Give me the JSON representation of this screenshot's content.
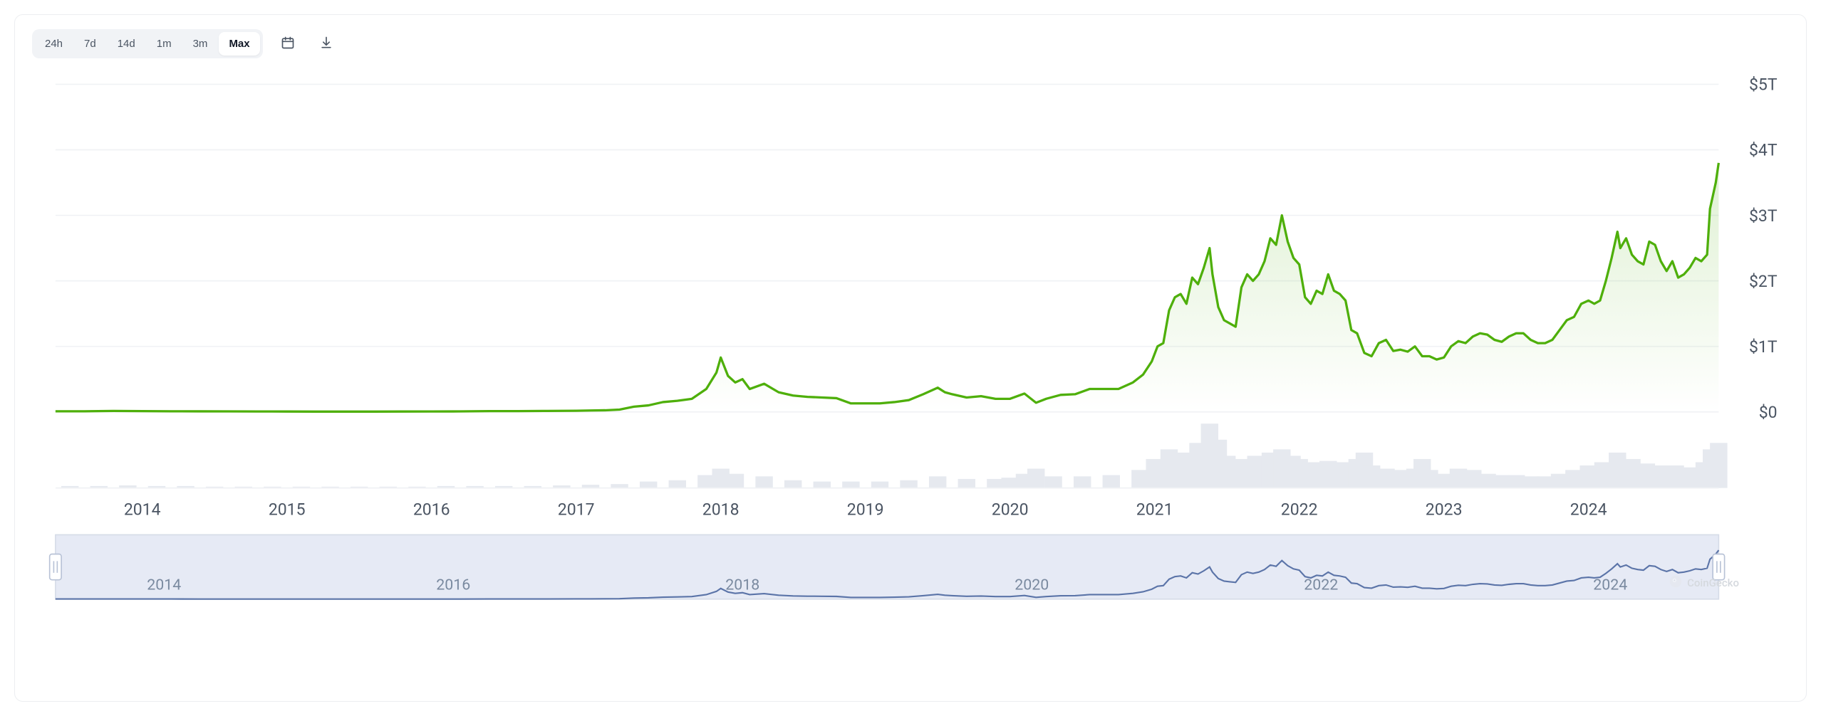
{
  "toolbar": {
    "ranges": [
      "24h",
      "7d",
      "14d",
      "1m",
      "3m",
      "Max"
    ],
    "active_range": "Max"
  },
  "watermark": {
    "text": "CoinGecko"
  },
  "main_chart": {
    "type": "area",
    "line_color": "#4eaf0a",
    "line_width": 2,
    "fill_top_color": "#4eaf0a",
    "fill_top_opacity": 0.18,
    "fill_bottom_opacity": 0.0,
    "grid_color": "#f0f2f5",
    "background_color": "#ffffff",
    "y_axis": {
      "min": 0,
      "max": 5,
      "ticks": [
        0,
        1,
        2,
        3,
        4,
        5
      ],
      "tick_labels": [
        "$0",
        "$1T",
        "$2T",
        "$3T",
        "$4T",
        "$5T"
      ],
      "label_color": "#4b5563",
      "label_fontsize": 14
    },
    "x_axis": {
      "tick_years": [
        2014,
        2015,
        2016,
        2017,
        2018,
        2019,
        2020,
        2021,
        2022,
        2023,
        2024
      ],
      "label_color": "#4b5563",
      "label_fontsize": 14
    },
    "x_domain": [
      2013.4,
      2024.9
    ],
    "series": [
      {
        "x": 2013.4,
        "y": 0.01
      },
      {
        "x": 2013.6,
        "y": 0.01
      },
      {
        "x": 2013.8,
        "y": 0.015
      },
      {
        "x": 2014.0,
        "y": 0.012
      },
      {
        "x": 2014.2,
        "y": 0.01
      },
      {
        "x": 2014.4,
        "y": 0.009
      },
      {
        "x": 2014.6,
        "y": 0.008
      },
      {
        "x": 2014.8,
        "y": 0.007
      },
      {
        "x": 2015.0,
        "y": 0.006
      },
      {
        "x": 2015.2,
        "y": 0.005
      },
      {
        "x": 2015.4,
        "y": 0.005
      },
      {
        "x": 2015.6,
        "y": 0.005
      },
      {
        "x": 2015.8,
        "y": 0.006
      },
      {
        "x": 2016.0,
        "y": 0.007
      },
      {
        "x": 2016.2,
        "y": 0.008
      },
      {
        "x": 2016.4,
        "y": 0.012
      },
      {
        "x": 2016.6,
        "y": 0.012
      },
      {
        "x": 2016.8,
        "y": 0.015
      },
      {
        "x": 2017.0,
        "y": 0.018
      },
      {
        "x": 2017.1,
        "y": 0.022
      },
      {
        "x": 2017.2,
        "y": 0.025
      },
      {
        "x": 2017.3,
        "y": 0.035
      },
      {
        "x": 2017.4,
        "y": 0.08
      },
      {
        "x": 2017.5,
        "y": 0.1
      },
      {
        "x": 2017.6,
        "y": 0.15
      },
      {
        "x": 2017.7,
        "y": 0.17
      },
      {
        "x": 2017.8,
        "y": 0.2
      },
      {
        "x": 2017.9,
        "y": 0.35
      },
      {
        "x": 2017.97,
        "y": 0.6
      },
      {
        "x": 2018.0,
        "y": 0.83
      },
      {
        "x": 2018.05,
        "y": 0.55
      },
      {
        "x": 2018.1,
        "y": 0.45
      },
      {
        "x": 2018.15,
        "y": 0.5
      },
      {
        "x": 2018.2,
        "y": 0.35
      },
      {
        "x": 2018.3,
        "y": 0.43
      },
      {
        "x": 2018.4,
        "y": 0.3
      },
      {
        "x": 2018.5,
        "y": 0.25
      },
      {
        "x": 2018.6,
        "y": 0.23
      },
      {
        "x": 2018.7,
        "y": 0.22
      },
      {
        "x": 2018.8,
        "y": 0.21
      },
      {
        "x": 2018.9,
        "y": 0.13
      },
      {
        "x": 2019.0,
        "y": 0.13
      },
      {
        "x": 2019.1,
        "y": 0.13
      },
      {
        "x": 2019.2,
        "y": 0.15
      },
      {
        "x": 2019.3,
        "y": 0.18
      },
      {
        "x": 2019.4,
        "y": 0.27
      },
      {
        "x": 2019.5,
        "y": 0.37
      },
      {
        "x": 2019.55,
        "y": 0.3
      },
      {
        "x": 2019.6,
        "y": 0.27
      },
      {
        "x": 2019.7,
        "y": 0.22
      },
      {
        "x": 2019.8,
        "y": 0.24
      },
      {
        "x": 2019.9,
        "y": 0.2
      },
      {
        "x": 2020.0,
        "y": 0.2
      },
      {
        "x": 2020.1,
        "y": 0.28
      },
      {
        "x": 2020.18,
        "y": 0.14
      },
      {
        "x": 2020.25,
        "y": 0.2
      },
      {
        "x": 2020.35,
        "y": 0.26
      },
      {
        "x": 2020.45,
        "y": 0.27
      },
      {
        "x": 2020.55,
        "y": 0.35
      },
      {
        "x": 2020.65,
        "y": 0.35
      },
      {
        "x": 2020.75,
        "y": 0.35
      },
      {
        "x": 2020.85,
        "y": 0.45
      },
      {
        "x": 2020.92,
        "y": 0.57
      },
      {
        "x": 2020.98,
        "y": 0.77
      },
      {
        "x": 2021.02,
        "y": 1.0
      },
      {
        "x": 2021.06,
        "y": 1.05
      },
      {
        "x": 2021.1,
        "y": 1.55
      },
      {
        "x": 2021.14,
        "y": 1.75
      },
      {
        "x": 2021.18,
        "y": 1.8
      },
      {
        "x": 2021.22,
        "y": 1.65
      },
      {
        "x": 2021.26,
        "y": 2.05
      },
      {
        "x": 2021.3,
        "y": 1.95
      },
      {
        "x": 2021.34,
        "y": 2.2
      },
      {
        "x": 2021.38,
        "y": 2.5
      },
      {
        "x": 2021.4,
        "y": 2.1
      },
      {
        "x": 2021.44,
        "y": 1.6
      },
      {
        "x": 2021.48,
        "y": 1.4
      },
      {
        "x": 2021.52,
        "y": 1.35
      },
      {
        "x": 2021.56,
        "y": 1.3
      },
      {
        "x": 2021.6,
        "y": 1.9
      },
      {
        "x": 2021.64,
        "y": 2.1
      },
      {
        "x": 2021.68,
        "y": 2.0
      },
      {
        "x": 2021.72,
        "y": 2.1
      },
      {
        "x": 2021.76,
        "y": 2.3
      },
      {
        "x": 2021.8,
        "y": 2.65
      },
      {
        "x": 2021.84,
        "y": 2.55
      },
      {
        "x": 2021.88,
        "y": 3.0
      },
      {
        "x": 2021.92,
        "y": 2.6
      },
      {
        "x": 2021.96,
        "y": 2.35
      },
      {
        "x": 2022.0,
        "y": 2.25
      },
      {
        "x": 2022.04,
        "y": 1.75
      },
      {
        "x": 2022.08,
        "y": 1.65
      },
      {
        "x": 2022.12,
        "y": 1.85
      },
      {
        "x": 2022.16,
        "y": 1.8
      },
      {
        "x": 2022.2,
        "y": 2.1
      },
      {
        "x": 2022.24,
        "y": 1.85
      },
      {
        "x": 2022.28,
        "y": 1.8
      },
      {
        "x": 2022.32,
        "y": 1.7
      },
      {
        "x": 2022.36,
        "y": 1.25
      },
      {
        "x": 2022.4,
        "y": 1.2
      },
      {
        "x": 2022.45,
        "y": 0.9
      },
      {
        "x": 2022.5,
        "y": 0.85
      },
      {
        "x": 2022.55,
        "y": 1.05
      },
      {
        "x": 2022.6,
        "y": 1.1
      },
      {
        "x": 2022.65,
        "y": 0.93
      },
      {
        "x": 2022.7,
        "y": 0.95
      },
      {
        "x": 2022.75,
        "y": 0.92
      },
      {
        "x": 2022.8,
        "y": 1.0
      },
      {
        "x": 2022.85,
        "y": 0.85
      },
      {
        "x": 2022.9,
        "y": 0.85
      },
      {
        "x": 2022.95,
        "y": 0.8
      },
      {
        "x": 2023.0,
        "y": 0.83
      },
      {
        "x": 2023.05,
        "y": 1.0
      },
      {
        "x": 2023.1,
        "y": 1.08
      },
      {
        "x": 2023.15,
        "y": 1.05
      },
      {
        "x": 2023.2,
        "y": 1.15
      },
      {
        "x": 2023.25,
        "y": 1.2
      },
      {
        "x": 2023.3,
        "y": 1.18
      },
      {
        "x": 2023.35,
        "y": 1.1
      },
      {
        "x": 2023.4,
        "y": 1.07
      },
      {
        "x": 2023.45,
        "y": 1.15
      },
      {
        "x": 2023.5,
        "y": 1.2
      },
      {
        "x": 2023.55,
        "y": 1.2
      },
      {
        "x": 2023.6,
        "y": 1.1
      },
      {
        "x": 2023.65,
        "y": 1.05
      },
      {
        "x": 2023.7,
        "y": 1.05
      },
      {
        "x": 2023.75,
        "y": 1.1
      },
      {
        "x": 2023.8,
        "y": 1.25
      },
      {
        "x": 2023.85,
        "y": 1.4
      },
      {
        "x": 2023.9,
        "y": 1.45
      },
      {
        "x": 2023.95,
        "y": 1.65
      },
      {
        "x": 2024.0,
        "y": 1.7
      },
      {
        "x": 2024.04,
        "y": 1.65
      },
      {
        "x": 2024.08,
        "y": 1.7
      },
      {
        "x": 2024.12,
        "y": 2.0
      },
      {
        "x": 2024.16,
        "y": 2.35
      },
      {
        "x": 2024.2,
        "y": 2.75
      },
      {
        "x": 2024.22,
        "y": 2.5
      },
      {
        "x": 2024.26,
        "y": 2.65
      },
      {
        "x": 2024.3,
        "y": 2.4
      },
      {
        "x": 2024.34,
        "y": 2.3
      },
      {
        "x": 2024.38,
        "y": 2.25
      },
      {
        "x": 2024.42,
        "y": 2.6
      },
      {
        "x": 2024.46,
        "y": 2.55
      },
      {
        "x": 2024.5,
        "y": 2.3
      },
      {
        "x": 2024.54,
        "y": 2.15
      },
      {
        "x": 2024.58,
        "y": 2.3
      },
      {
        "x": 2024.62,
        "y": 2.05
      },
      {
        "x": 2024.66,
        "y": 2.1
      },
      {
        "x": 2024.7,
        "y": 2.2
      },
      {
        "x": 2024.74,
        "y": 2.35
      },
      {
        "x": 2024.78,
        "y": 2.3
      },
      {
        "x": 2024.82,
        "y": 2.4
      },
      {
        "x": 2024.84,
        "y": 3.1
      },
      {
        "x": 2024.86,
        "y": 3.3
      },
      {
        "x": 2024.88,
        "y": 3.5
      },
      {
        "x": 2024.9,
        "y": 3.8
      }
    ]
  },
  "volume_chart": {
    "bar_color": "#e6e9ef",
    "bars": [
      {
        "x": 2013.5,
        "h": 0.03
      },
      {
        "x": 2013.7,
        "h": 0.03
      },
      {
        "x": 2013.9,
        "h": 0.04
      },
      {
        "x": 2014.1,
        "h": 0.03
      },
      {
        "x": 2014.3,
        "h": 0.03
      },
      {
        "x": 2014.5,
        "h": 0.02
      },
      {
        "x": 2014.7,
        "h": 0.02
      },
      {
        "x": 2014.9,
        "h": 0.02
      },
      {
        "x": 2015.1,
        "h": 0.02
      },
      {
        "x": 2015.3,
        "h": 0.02
      },
      {
        "x": 2015.5,
        "h": 0.02
      },
      {
        "x": 2015.7,
        "h": 0.02
      },
      {
        "x": 2015.9,
        "h": 0.02
      },
      {
        "x": 2016.1,
        "h": 0.03
      },
      {
        "x": 2016.3,
        "h": 0.03
      },
      {
        "x": 2016.5,
        "h": 0.03
      },
      {
        "x": 2016.7,
        "h": 0.03
      },
      {
        "x": 2016.9,
        "h": 0.04
      },
      {
        "x": 2017.1,
        "h": 0.05
      },
      {
        "x": 2017.3,
        "h": 0.06
      },
      {
        "x": 2017.5,
        "h": 0.1
      },
      {
        "x": 2017.7,
        "h": 0.12
      },
      {
        "x": 2017.9,
        "h": 0.2
      },
      {
        "x": 2018.0,
        "h": 0.3
      },
      {
        "x": 2018.1,
        "h": 0.22
      },
      {
        "x": 2018.3,
        "h": 0.18
      },
      {
        "x": 2018.5,
        "h": 0.12
      },
      {
        "x": 2018.7,
        "h": 0.1
      },
      {
        "x": 2018.9,
        "h": 0.1
      },
      {
        "x": 2019.1,
        "h": 0.1
      },
      {
        "x": 2019.3,
        "h": 0.12
      },
      {
        "x": 2019.5,
        "h": 0.18
      },
      {
        "x": 2019.7,
        "h": 0.14
      },
      {
        "x": 2019.9,
        "h": 0.14
      },
      {
        "x": 2020.0,
        "h": 0.16
      },
      {
        "x": 2020.1,
        "h": 0.22
      },
      {
        "x": 2020.18,
        "h": 0.3
      },
      {
        "x": 2020.3,
        "h": 0.18
      },
      {
        "x": 2020.5,
        "h": 0.18
      },
      {
        "x": 2020.7,
        "h": 0.2
      },
      {
        "x": 2020.9,
        "h": 0.28
      },
      {
        "x": 2021.0,
        "h": 0.45
      },
      {
        "x": 2021.1,
        "h": 0.6
      },
      {
        "x": 2021.2,
        "h": 0.55
      },
      {
        "x": 2021.3,
        "h": 0.7
      },
      {
        "x": 2021.38,
        "h": 1.0
      },
      {
        "x": 2021.44,
        "h": 0.75
      },
      {
        "x": 2021.5,
        "h": 0.5
      },
      {
        "x": 2021.6,
        "h": 0.45
      },
      {
        "x": 2021.7,
        "h": 0.5
      },
      {
        "x": 2021.8,
        "h": 0.55
      },
      {
        "x": 2021.88,
        "h": 0.6
      },
      {
        "x": 2021.95,
        "h": 0.5
      },
      {
        "x": 2022.0,
        "h": 0.45
      },
      {
        "x": 2022.1,
        "h": 0.4
      },
      {
        "x": 2022.2,
        "h": 0.42
      },
      {
        "x": 2022.3,
        "h": 0.4
      },
      {
        "x": 2022.4,
        "h": 0.45
      },
      {
        "x": 2022.45,
        "h": 0.55
      },
      {
        "x": 2022.5,
        "h": 0.35
      },
      {
        "x": 2022.6,
        "h": 0.3
      },
      {
        "x": 2022.7,
        "h": 0.28
      },
      {
        "x": 2022.8,
        "h": 0.3
      },
      {
        "x": 2022.85,
        "h": 0.45
      },
      {
        "x": 2022.9,
        "h": 0.28
      },
      {
        "x": 2023.0,
        "h": 0.22
      },
      {
        "x": 2023.1,
        "h": 0.3
      },
      {
        "x": 2023.2,
        "h": 0.28
      },
      {
        "x": 2023.3,
        "h": 0.22
      },
      {
        "x": 2023.4,
        "h": 0.2
      },
      {
        "x": 2023.5,
        "h": 0.2
      },
      {
        "x": 2023.6,
        "h": 0.18
      },
      {
        "x": 2023.7,
        "h": 0.18
      },
      {
        "x": 2023.8,
        "h": 0.22
      },
      {
        "x": 2023.9,
        "h": 0.28
      },
      {
        "x": 2024.0,
        "h": 0.35
      },
      {
        "x": 2024.1,
        "h": 0.4
      },
      {
        "x": 2024.2,
        "h": 0.55
      },
      {
        "x": 2024.3,
        "h": 0.45
      },
      {
        "x": 2024.4,
        "h": 0.38
      },
      {
        "x": 2024.5,
        "h": 0.35
      },
      {
        "x": 2024.6,
        "h": 0.35
      },
      {
        "x": 2024.7,
        "h": 0.32
      },
      {
        "x": 2024.8,
        "h": 0.4
      },
      {
        "x": 2024.85,
        "h": 0.6
      },
      {
        "x": 2024.9,
        "h": 0.7
      }
    ]
  },
  "navigator": {
    "background_color": "#c7d1e8",
    "background_opacity": 0.45,
    "line_color": "#5b74a8",
    "line_width": 1.3,
    "handle_color": "#ffffff",
    "handle_border": "#b8c2d6",
    "x_ticks": [
      2014,
      2016,
      2018,
      2020,
      2022,
      2024
    ],
    "label_color": "#7a8aa0"
  }
}
